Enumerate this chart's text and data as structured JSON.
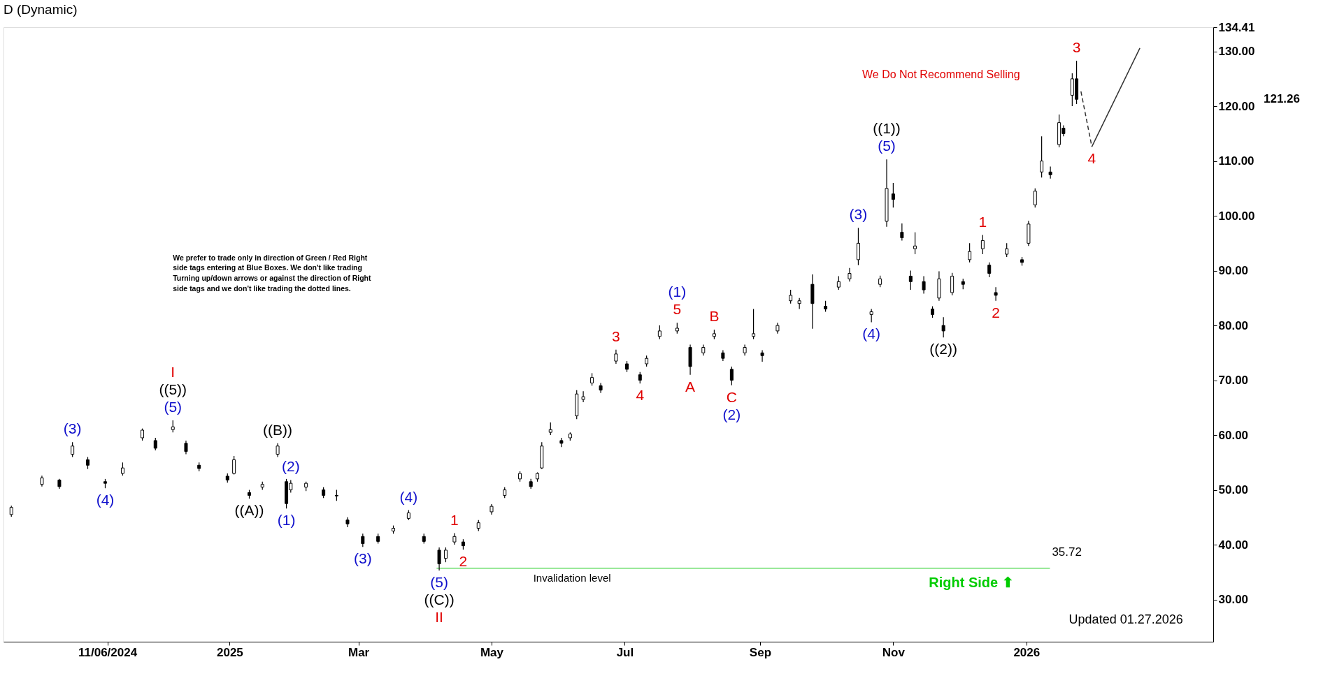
{
  "chart_data": {
    "type": "candlestick",
    "title": "D (Dynamic)",
    "x": [
      "2024-09-23",
      "2024-10-07",
      "2024-10-15",
      "2024-10-21",
      "2024-10-28",
      "2024-11-05",
      "2024-11-13",
      "2024-11-22",
      "2024-11-28",
      "2024-12-06",
      "2024-12-12",
      "2024-12-18",
      "2024-12-31",
      "2025-01-03",
      "2025-01-10",
      "2025-01-16",
      "2025-01-23",
      "2025-01-27",
      "2025-01-29",
      "2025-02-05",
      "2025-02-13",
      "2025-02-19",
      "2025-02-24",
      "2025-03-03",
      "2025-03-10",
      "2025-03-17",
      "2025-03-24",
      "2025-03-31",
      "2025-04-07",
      "2025-04-10",
      "2025-04-14",
      "2025-04-18",
      "2025-04-25",
      "2025-05-01",
      "2025-05-07",
      "2025-05-14",
      "2025-05-19",
      "2025-05-22",
      "2025-05-24",
      "2025-05-28",
      "2025-06-02",
      "2025-06-06",
      "2025-06-09",
      "2025-06-12",
      "2025-06-16",
      "2025-06-20",
      "2025-06-27",
      "2025-07-02",
      "2025-07-08",
      "2025-07-11",
      "2025-07-17",
      "2025-07-25",
      "2025-07-31",
      "2025-08-06",
      "2025-08-11",
      "2025-08-15",
      "2025-08-19",
      "2025-08-25",
      "2025-08-29",
      "2025-09-02",
      "2025-09-09",
      "2025-09-15",
      "2025-09-19",
      "2025-09-25",
      "2025-10-01",
      "2025-10-07",
      "2025-10-12",
      "2025-10-16",
      "2025-10-22",
      "2025-10-26",
      "2025-10-29",
      "2025-11-01",
      "2025-11-05",
      "2025-11-09",
      "2025-11-11",
      "2025-11-15",
      "2025-11-19",
      "2025-11-22",
      "2025-11-24",
      "2025-11-28",
      "2025-12-03",
      "2025-12-06",
      "2025-12-12",
      "2025-12-15",
      "2025-12-18",
      "2025-12-23",
      "2025-12-30",
      "2026-01-02",
      "2026-01-05",
      "2026-01-08",
      "2026-01-12",
      "2026-01-16",
      "2026-01-18",
      "2026-01-22",
      "2026-01-24"
    ],
    "ohlc": [
      [
        45.5,
        47.1,
        45.1,
        46.8
      ],
      [
        51.0,
        52.6,
        50.6,
        52.2
      ],
      [
        51.8,
        52.0,
        50.2,
        50.6
      ],
      [
        56.5,
        58.7,
        56.0,
        58.0
      ],
      [
        55.5,
        56.0,
        53.8,
        54.5
      ],
      [
        51.5,
        52.0,
        50.3,
        51.2
      ],
      [
        53.0,
        55.0,
        52.6,
        54.0
      ],
      [
        59.5,
        61.2,
        59.0,
        60.9
      ],
      [
        59.0,
        59.5,
        57.2,
        57.6
      ],
      [
        61.0,
        62.7,
        60.5,
        61.5
      ],
      [
        58.5,
        59.0,
        56.5,
        57.0
      ],
      [
        54.5,
        55.0,
        53.4,
        53.9
      ],
      [
        52.5,
        53.0,
        51.3,
        51.8
      ],
      [
        53.0,
        56.2,
        52.8,
        55.5
      ],
      [
        49.5,
        50.0,
        48.4,
        49.0
      ],
      [
        50.5,
        51.5,
        50.0,
        51.0
      ],
      [
        56.5,
        58.5,
        56.0,
        58.0
      ],
      [
        51.5,
        52.0,
        46.6,
        47.5
      ],
      [
        50.0,
        51.8,
        49.5,
        51.2
      ],
      [
        50.5,
        51.5,
        49.8,
        51.2
      ],
      [
        50.0,
        50.5,
        48.5,
        49.0
      ],
      [
        49.0,
        50.0,
        48.0,
        48.9
      ],
      [
        44.5,
        45.0,
        43.2,
        43.8
      ],
      [
        41.5,
        42.0,
        39.6,
        40.2
      ],
      [
        41.5,
        42.0,
        40.2,
        40.6
      ],
      [
        42.5,
        43.5,
        42.0,
        43.0
      ],
      [
        44.8,
        46.3,
        44.5,
        45.8
      ],
      [
        41.5,
        42.0,
        40.2,
        40.6
      ],
      [
        39.0,
        39.5,
        35.3,
        36.5
      ],
      [
        37.5,
        39.5,
        36.8,
        39.0
      ],
      [
        40.5,
        42.1,
        40.0,
        41.5
      ],
      [
        40.5,
        41.0,
        39.1,
        39.8
      ],
      [
        43.0,
        44.5,
        42.5,
        44.0
      ],
      [
        46.0,
        47.4,
        45.5,
        47.0
      ],
      [
        49.0,
        50.5,
        48.5,
        50.0
      ],
      [
        52.0,
        53.4,
        51.5,
        53.0
      ],
      [
        51.5,
        52.0,
        50.2,
        50.6
      ],
      [
        52.0,
        53.2,
        51.5,
        53.0
      ],
      [
        54.0,
        58.7,
        53.8,
        58.0
      ],
      [
        60.5,
        62.3,
        60.0,
        61.0
      ],
      [
        59.0,
        59.5,
        57.8,
        58.5
      ],
      [
        59.5,
        60.5,
        59.0,
        60.2
      ],
      [
        63.5,
        68.2,
        62.9,
        67.5
      ],
      [
        66.5,
        68.0,
        66.0,
        67.0
      ],
      [
        69.5,
        71.3,
        69.0,
        70.5
      ],
      [
        69.0,
        69.5,
        67.7,
        68.2
      ],
      [
        73.5,
        75.6,
        73.0,
        74.8
      ],
      [
        73.0,
        73.5,
        71.5,
        72.0
      ],
      [
        71.0,
        71.5,
        69.4,
        70.0
      ],
      [
        73.0,
        74.5,
        72.5,
        74.0
      ],
      [
        78.0,
        80.0,
        77.5,
        79.0
      ],
      [
        79.0,
        80.5,
        78.5,
        79.5
      ],
      [
        76.0,
        76.5,
        71.0,
        72.5
      ],
      [
        75.0,
        76.5,
        74.5,
        76.0
      ],
      [
        78.0,
        79.2,
        77.5,
        78.5
      ],
      [
        75.0,
        75.5,
        73.5,
        74.0
      ],
      [
        72.0,
        72.5,
        69.1,
        70.0
      ],
      [
        75.0,
        76.5,
        74.5,
        76.0
      ],
      [
        78.0,
        83.0,
        77.5,
        78.5
      ],
      [
        75.0,
        75.5,
        73.4,
        74.5
      ],
      [
        79.0,
        80.5,
        78.5,
        80.0
      ],
      [
        84.5,
        86.5,
        84.0,
        85.5
      ],
      [
        84.0,
        85.0,
        83.0,
        84.5
      ],
      [
        87.5,
        89.3,
        79.4,
        84.0
      ],
      [
        83.5,
        84.5,
        82.5,
        83.0
      ],
      [
        87.0,
        89.0,
        86.5,
        88.0
      ],
      [
        88.5,
        90.5,
        88.0,
        89.5
      ],
      [
        92.0,
        97.8,
        91.0,
        95.0
      ],
      [
        82.0,
        83.0,
        80.6,
        82.5
      ],
      [
        87.5,
        89.1,
        87.0,
        88.5
      ],
      [
        99.0,
        110.3,
        98.0,
        105.0
      ],
      [
        104.0,
        106.0,
        101.5,
        103.0
      ],
      [
        97.0,
        98.6,
        95.5,
        96.0
      ],
      [
        89.0,
        90.0,
        86.5,
        88.0
      ],
      [
        94.0,
        97.0,
        93.0,
        94.5
      ],
      [
        88.0,
        89.0,
        85.8,
        86.5
      ],
      [
        83.0,
        83.5,
        81.4,
        82.0
      ],
      [
        85.0,
        89.9,
        84.5,
        88.5
      ],
      [
        80.0,
        81.5,
        77.8,
        79.0
      ],
      [
        86.0,
        89.6,
        85.5,
        89.0
      ],
      [
        88.0,
        88.5,
        86.6,
        87.5
      ],
      [
        92.0,
        95.0,
        91.5,
        93.5
      ],
      [
        94.0,
        96.5,
        93.0,
        95.5
      ],
      [
        91.0,
        91.5,
        88.8,
        89.5
      ],
      [
        86.0,
        87.0,
        84.5,
        85.5
      ],
      [
        93.0,
        95.0,
        92.5,
        94.0
      ],
      [
        92.0,
        92.5,
        90.9,
        91.5
      ],
      [
        95.0,
        99.1,
        94.5,
        98.5
      ],
      [
        102.0,
        105.0,
        101.5,
        104.5
      ],
      [
        108.0,
        114.5,
        107.0,
        110.0
      ],
      [
        108.0,
        109.0,
        106.8,
        107.5
      ],
      [
        113.0,
        118.5,
        112.5,
        117.0
      ],
      [
        116.0,
        116.5,
        114.5,
        115.0
      ],
      [
        122.0,
        126.0,
        120.0,
        125.0
      ],
      [
        125.0,
        128.3,
        120.4,
        121.26
      ]
    ],
    "color": "#000000",
    "series": [
      {
        "type": "line",
        "color": "#333333",
        "line_style": "dashed",
        "x": [
          "2026-01-26",
          "2026-01-31"
        ],
        "values": [
          122.7,
          112.6
        ]
      },
      {
        "type": "line",
        "color": "#333333",
        "line_style": "solid",
        "x": [
          "2026-01-31",
          "2026-02-22"
        ],
        "values": [
          112.6,
          130.6
        ]
      }
    ],
    "xlim": [
      "2024-09-21",
      "2026-03-26"
    ],
    "xticks": [
      {
        "value": "2024-11-06",
        "label": "11/06/2024"
      },
      {
        "value": "2025-01-01",
        "label": "2025"
      },
      {
        "value": "2025-03-01",
        "label": "Mar"
      },
      {
        "value": "2025-05-01",
        "label": "May"
      },
      {
        "value": "2025-07-01",
        "label": "Jul"
      },
      {
        "value": "2025-09-01",
        "label": "Sep"
      },
      {
        "value": "2025-11-01",
        "label": "Nov"
      },
      {
        "value": "2026-01-01",
        "label": "2026"
      }
    ],
    "ylim": [
      22.3,
      134.41
    ],
    "yticks": [
      {
        "value": 30,
        "label": "30.00"
      },
      {
        "value": 40,
        "label": "40.00"
      },
      {
        "value": 50,
        "label": "50.00"
      },
      {
        "value": 60,
        "label": "60.00"
      },
      {
        "value": 70,
        "label": "70.00"
      },
      {
        "value": 80,
        "label": "80.00"
      },
      {
        "value": 90,
        "label": "90.00"
      },
      {
        "value": 100,
        "label": "100.00"
      },
      {
        "value": 110,
        "label": "110.00"
      },
      {
        "value": 120,
        "label": "120.00"
      },
      {
        "value": 130,
        "label": "130.00"
      },
      {
        "value": 134.41,
        "label": "134.41"
      }
    ],
    "ref_lines": [
      {
        "axis": "y",
        "value": 35.72,
        "label": "Invalidation level",
        "color": "#66dd66"
      }
    ],
    "grid": false,
    "annotations": [
      {
        "text": "(5)",
        "x": "2024-12-06",
        "y": 62.7
      },
      {
        "text": "((5))",
        "x": "2024-12-06",
        "y": 62.7
      },
      {
        "text": "I",
        "x": "2024-12-06",
        "y": 62.7
      },
      {
        "text": "(3)",
        "x": "2024-10-21",
        "y": 58.7
      },
      {
        "text": "(4)",
        "x": "2024-11-05",
        "y": 50.3
      },
      {
        "text": "((A))",
        "x": "2025-01-10",
        "y": 48.4
      },
      {
        "text": "((B))",
        "x": "2025-01-23",
        "y": 58.5
      },
      {
        "text": "(1)",
        "x": "2025-01-27",
        "y": 46.6
      },
      {
        "text": "(2)",
        "x": "2025-01-29",
        "y": 51.8
      },
      {
        "text": "(3)",
        "x": "2025-03-03",
        "y": 39.6
      },
      {
        "text": "(4)",
        "x": "2025-03-24",
        "y": 46.3
      },
      {
        "text": "(5)",
        "x": "2025-04-07",
        "y": 35.3
      },
      {
        "text": "((C))",
        "x": "2025-04-07",
        "y": 35.3
      },
      {
        "text": "II",
        "x": "2025-04-07",
        "y": 35.3
      },
      {
        "text": "1",
        "x": "2025-04-14",
        "y": 42.1
      },
      {
        "text": "2",
        "x": "2025-04-18",
        "y": 39.1
      },
      {
        "text": "3",
        "x": "2025-06-27",
        "y": 75.6
      },
      {
        "text": "4",
        "x": "2025-07-08",
        "y": 69.4
      },
      {
        "text": "5",
        "x": "2025-07-25",
        "y": 80.5
      },
      {
        "text": "(1)",
        "x": "2025-07-25",
        "y": 80.5
      },
      {
        "text": "A",
        "x": "2025-07-31",
        "y": 71.0
      },
      {
        "text": "B",
        "x": "2025-08-11",
        "y": 79.2
      },
      {
        "text": "C",
        "x": "2025-08-19",
        "y": 69.1
      },
      {
        "text": "(2)",
        "x": "2025-08-19",
        "y": 69.1
      },
      {
        "text": "(3)",
        "x": "2025-10-16",
        "y": 97.8
      },
      {
        "text": "(4)",
        "x": "2025-10-22",
        "y": 80.6
      },
      {
        "text": "(5)",
        "x": "2025-10-29",
        "y": 110.3
      },
      {
        "text": "((1))",
        "x": "2025-10-29",
        "y": 110.3
      },
      {
        "text": "((2))",
        "x": "2025-11-24",
        "y": 77.8
      },
      {
        "text": "1",
        "x": "2025-12-12",
        "y": 96.5
      },
      {
        "text": "2",
        "x": "2025-12-18",
        "y": 84.5
      },
      {
        "text": "3",
        "x": "2026-01-24",
        "y": 128.3
      },
      {
        "text": "4",
        "x": "2026-01-31",
        "y": 112.6
      },
      "121.26",
      "35.72",
      "We prefer to trade only in direction of Green / Red Right\nside tags entering at Blue Boxes. We don't like trading\nTurning up/down arrows or against the direction of Right\nside tags and we don't like trading the dotted lines.",
      "We Do Not Recommend Selling",
      "Right Side ⬆",
      "Updated 01.27.2026"
    ]
  }
}
